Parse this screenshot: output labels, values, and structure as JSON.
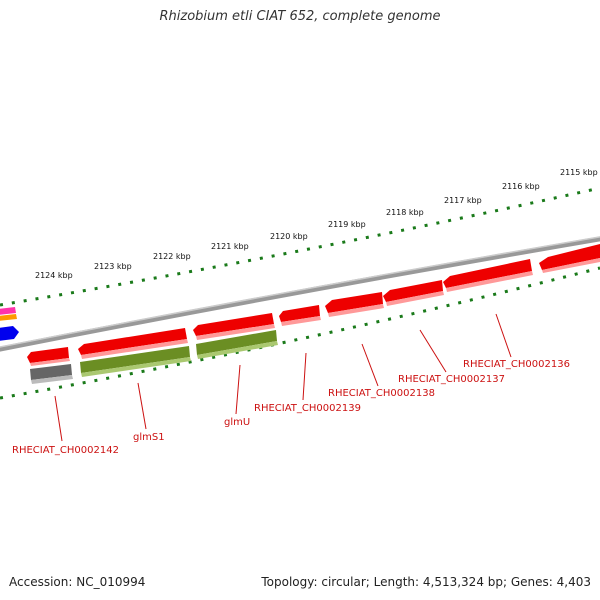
{
  "title": "Rhizobium etli CIAT 652, complete genome",
  "accession": "Accession: NC_010994",
  "topology": "Topology: circular; Length: 4,513,324 bp; Genes: 4,403",
  "ticks": [
    "2115 kbp",
    "2116 kbp",
    "2117 kbp",
    "2118 kbp",
    "2119 kbp",
    "2120 kbp",
    "2121 kbp",
    "2122 kbp",
    "2123 kbp",
    "2124 kbp"
  ],
  "genes": [
    {
      "label": "RHECIAT_CH0002136",
      "color": "#ee0000",
      "strand": "reverse"
    },
    {
      "label": "RHECIAT_CH0002137",
      "color": "#ee0000",
      "strand": "reverse"
    },
    {
      "label": "RHECIAT_CH0002138",
      "color": "#ee0000",
      "strand": "reverse"
    },
    {
      "label": "RHECIAT_CH0002139",
      "color": "#ee0000",
      "strand": "reverse"
    },
    {
      "label": "glmU",
      "color": "#6b8e23",
      "strand": "reverse"
    },
    {
      "label": "glmS1",
      "color": "#6b8e23",
      "strand": "reverse"
    },
    {
      "label": "RHECIAT_CH0002142",
      "color": "#666666",
      "strand": "reverse"
    }
  ],
  "colors": {
    "backbone": "#888888",
    "tick": "#1a7a1a",
    "cds": "#ee0000",
    "rna": "#6b8e23",
    "pseudo": "#666666",
    "label": "#cc1111",
    "other_forward": [
      "#ff33aa",
      "#ff9900",
      "#0000ee"
    ]
  }
}
